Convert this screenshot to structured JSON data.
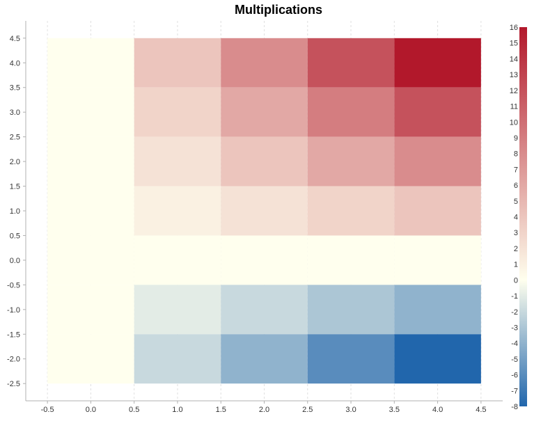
{
  "chart_data": {
    "type": "heatmap",
    "title": "Multiplications",
    "xlabel": "",
    "ylabel": "",
    "x_centers": [
      0,
      1,
      2,
      3,
      4
    ],
    "y_centers": [
      4,
      3,
      2,
      1,
      0,
      -1,
      -2
    ],
    "cell_width": 1,
    "cell_height": 1,
    "values": [
      [
        0,
        4,
        8,
        12,
        16
      ],
      [
        0,
        3,
        6,
        9,
        12
      ],
      [
        0,
        2,
        4,
        6,
        8
      ],
      [
        0,
        1,
        2,
        3,
        4
      ],
      [
        0,
        0,
        0,
        0,
        0
      ],
      [
        0,
        -1,
        -2,
        -3,
        -4
      ],
      [
        0,
        -2,
        -4,
        -6,
        -8
      ]
    ],
    "xlim": [
      -0.75,
      4.75
    ],
    "ylim": [
      -2.85,
      4.85
    ],
    "x_ticks": [
      -0.5,
      0.0,
      0.5,
      1.0,
      1.5,
      2.0,
      2.5,
      3.0,
      3.5,
      4.0,
      4.5
    ],
    "x_tick_labels": [
      "-0.5",
      "0.0",
      "0.5",
      "1.0",
      "1.5",
      "2.0",
      "2.5",
      "3.0",
      "3.5",
      "4.0",
      "4.5"
    ],
    "y_ticks": [
      4.5,
      4.0,
      3.5,
      3.0,
      2.5,
      2.0,
      1.5,
      1.0,
      0.5,
      0.0,
      -0.5,
      -1.0,
      -1.5,
      -2.0,
      -2.5
    ],
    "y_tick_labels": [
      "4.5",
      "4.0",
      "3.5",
      "3.0",
      "2.5",
      "2.0",
      "1.5",
      "1.0",
      "0.5",
      "0.0",
      "-0.5",
      "-1.0",
      "-1.5",
      "-2.0",
      "-2.5"
    ],
    "grid": true,
    "colorbar": {
      "min": -8,
      "max": 16,
      "ticks": [
        16,
        15,
        14,
        13,
        12,
        11,
        10,
        9,
        8,
        7,
        6,
        5,
        4,
        3,
        2,
        1,
        0,
        -1,
        -2,
        -3,
        -4,
        -5,
        -6,
        -7,
        -8
      ],
      "tick_labels": [
        "16",
        "15",
        "14",
        "13",
        "12",
        "11",
        "10",
        "9",
        "8",
        "7",
        "6",
        "5",
        "4",
        "3",
        "2",
        "1",
        "0",
        "-1",
        "-2",
        "-3",
        "-4",
        "-5",
        "-6",
        "-7",
        "-8"
      ],
      "color_negative": "#2166ac",
      "color_mid": "#ffffee",
      "color_positive": "#b2182b",
      "legend_position": "right"
    }
  }
}
